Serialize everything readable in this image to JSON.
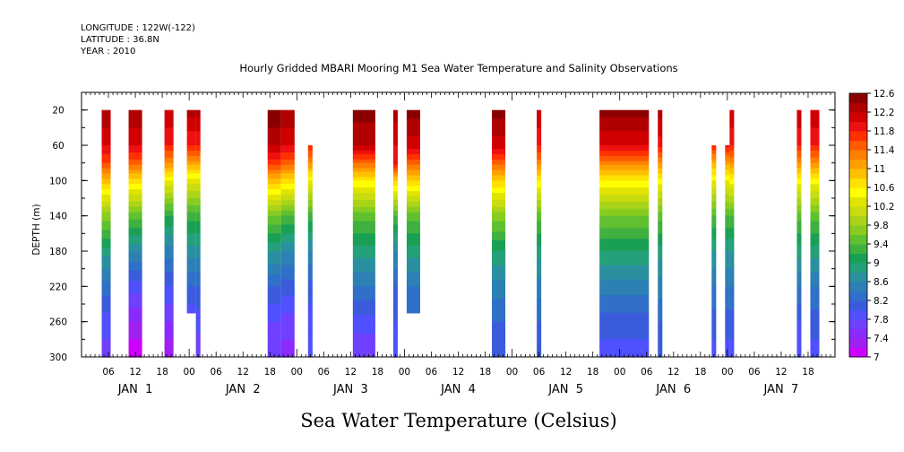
{
  "header": {
    "longitude": "LONGITUDE : 122W(-122)",
    "latitude": "LATITUDE : 36.8N",
    "year": "YEAR : 2010"
  },
  "chart_data": {
    "type": "heatmap",
    "title": "Hourly Gridded MBARI Mooring M1 Sea Water Temperature and Salinity Observations",
    "xlabel": "Sea Water Temperature (Celsius)",
    "ylabel": "DEPTH (m)",
    "ylim": [
      300,
      0
    ],
    "y_ticks": [
      20,
      60,
      100,
      140,
      180,
      220,
      260,
      300
    ],
    "x_range_hours": [
      0,
      168
    ],
    "hour_tick_labels": [
      "00",
      "06",
      "12",
      "18"
    ],
    "day_labels": [
      "JAN  1",
      "JAN  2",
      "JAN  3",
      "JAN  4",
      "JAN  5",
      "JAN  6",
      "JAN  7"
    ],
    "colorbar": {
      "levels": [
        7,
        7.2,
        7.4,
        7.6,
        7.8,
        8,
        8.2,
        8.4,
        8.6,
        8.8,
        9,
        9.2,
        9.4,
        9.6,
        9.8,
        10,
        10.2,
        10.4,
        10.6,
        10.8,
        11,
        11.2,
        11.4,
        11.6,
        11.8,
        12,
        12.2,
        12.4,
        12.6
      ],
      "tick_labels": [
        "7",
        "7.4",
        "7.8",
        "8.2",
        "8.6",
        "9",
        "9.4",
        "9.8",
        "10.2",
        "10.6",
        "11",
        "11.4",
        "11.8",
        "12.2",
        "12.6"
      ],
      "colors": [
        "#cc00ff",
        "#a020f0",
        "#8a2bfe",
        "#7040ff",
        "#5050ff",
        "#3a5cdc",
        "#3070c8",
        "#2c80b4",
        "#2a90a0",
        "#25a07a",
        "#1aa055",
        "#40b040",
        "#60c030",
        "#88cc20",
        "#aad418",
        "#c8dc10",
        "#e0e400",
        "#ffff00",
        "#ffe000",
        "#ffc000",
        "#ffa000",
        "#ff8000",
        "#ff5a00",
        "#ff3000",
        "#ee1010",
        "#d00000",
        "#b00000",
        "#8a0000"
      ]
    },
    "columns": [
      {
        "start_hour": 4.5,
        "end_hour": 6.5,
        "top_depth": 20,
        "bottom_depth": 300,
        "profile_depths": [
          20,
          60,
          80,
          100,
          140,
          180,
          220,
          260,
          300
        ],
        "profile_temps": [
          12.4,
          12.0,
          11.6,
          10.9,
          9.7,
          8.9,
          8.3,
          7.9,
          7.7
        ]
      },
      {
        "start_hour": 10.5,
        "end_hour": 13.5,
        "top_depth": 20,
        "bottom_depth": 300,
        "profile_depths": [
          20,
          60,
          80,
          100,
          140,
          180,
          220,
          260,
          300
        ],
        "profile_temps": [
          12.4,
          12.0,
          11.5,
          10.7,
          9.5,
          8.6,
          7.9,
          7.4,
          7.0
        ]
      },
      {
        "start_hour": 18.5,
        "end_hour": 20.5,
        "top_depth": 20,
        "bottom_depth": 300,
        "profile_depths": [
          20,
          60,
          80,
          100,
          140,
          180,
          220,
          260,
          300
        ],
        "profile_temps": [
          12.2,
          11.8,
          11.2,
          10.4,
          9.2,
          8.5,
          8.0,
          7.6,
          7.2
        ]
      },
      {
        "start_hour": 23.5,
        "end_hour": 25.5,
        "top_depth": 20,
        "bottom_depth": 250,
        "profile_depths": [
          20,
          60,
          80,
          100,
          140,
          180,
          220,
          250
        ],
        "profile_temps": [
          12.3,
          11.8,
          11.1,
          10.3,
          9.3,
          8.7,
          8.2,
          7.9
        ]
      },
      {
        "start_hour": 25.5,
        "end_hour": 26.5,
        "top_depth": 20,
        "bottom_depth": 300,
        "profile_depths": [
          20,
          60,
          80,
          100,
          140,
          180,
          220,
          260,
          300
        ],
        "profile_temps": [
          12.3,
          11.8,
          11.1,
          10.3,
          9.3,
          8.7,
          8.2,
          7.9,
          7.6
        ]
      },
      {
        "start_hour": 41.5,
        "end_hour": 44.5,
        "top_depth": 20,
        "bottom_depth": 300,
        "profile_depths": [
          20,
          60,
          80,
          100,
          140,
          180,
          220,
          260,
          300
        ],
        "profile_temps": [
          12.6,
          12.2,
          11.7,
          10.9,
          9.6,
          8.8,
          8.2,
          7.8,
          7.6
        ]
      },
      {
        "start_hour": 44.5,
        "end_hour": 47.5,
        "top_depth": 20,
        "bottom_depth": 300,
        "profile_depths": [
          20,
          60,
          80,
          100,
          140,
          180,
          220,
          260,
          300
        ],
        "profile_temps": [
          12.4,
          12.0,
          11.5,
          10.7,
          9.4,
          8.6,
          8.1,
          7.7,
          7.5
        ]
      },
      {
        "start_hour": 50.5,
        "end_hour": 51.5,
        "top_depth": 60,
        "bottom_depth": 300,
        "profile_depths": [
          60,
          80,
          100,
          140,
          180,
          220,
          260,
          300
        ],
        "profile_temps": [
          11.8,
          11.2,
          10.4,
          9.3,
          8.6,
          8.1,
          7.9,
          7.8
        ]
      },
      {
        "start_hour": 60.5,
        "end_hour": 65.5,
        "top_depth": 20,
        "bottom_depth": 300,
        "profile_depths": [
          20,
          60,
          80,
          100,
          140,
          180,
          220,
          260,
          300
        ],
        "profile_temps": [
          12.5,
          12.2,
          11.4,
          10.6,
          9.5,
          8.9,
          8.4,
          7.9,
          7.6
        ]
      },
      {
        "start_hour": 69.5,
        "end_hour": 70.5,
        "top_depth": 20,
        "bottom_depth": 300,
        "profile_depths": [
          20,
          60,
          80,
          100,
          140,
          180,
          220,
          260,
          300
        ],
        "profile_temps": [
          12.3,
          12.0,
          11.9,
          10.8,
          9.4,
          8.6,
          8.2,
          8.0,
          7.8
        ]
      },
      {
        "start_hour": 72.5,
        "end_hour": 75.5,
        "top_depth": 20,
        "bottom_depth": 250,
        "profile_depths": [
          20,
          60,
          80,
          100,
          140,
          180,
          220,
          250
        ],
        "profile_temps": [
          12.5,
          12.1,
          11.5,
          10.8,
          9.5,
          8.9,
          8.4,
          8.2
        ]
      },
      {
        "start_hour": 91.5,
        "end_hour": 94.5,
        "top_depth": 20,
        "bottom_depth": 300,
        "profile_depths": [
          20,
          60,
          80,
          100,
          140,
          180,
          220,
          260,
          300
        ],
        "profile_temps": [
          12.5,
          12.1,
          11.5,
          10.8,
          9.7,
          9.0,
          8.5,
          8.2,
          8.0
        ]
      },
      {
        "start_hour": 101.5,
        "end_hour": 102.5,
        "top_depth": 20,
        "bottom_depth": 300,
        "profile_depths": [
          20,
          60,
          80,
          100,
          140,
          180,
          220,
          260,
          300
        ],
        "profile_temps": [
          12.2,
          11.8,
          11.3,
          10.6,
          9.5,
          8.9,
          8.5,
          8.2,
          8.0
        ]
      },
      {
        "start_hour": 115.5,
        "end_hour": 126.5,
        "top_depth": 20,
        "bottom_depth": 300,
        "profile_depths": [
          20,
          60,
          80,
          100,
          140,
          180,
          220,
          260,
          300
        ],
        "profile_temps": [
          12.5,
          12.0,
          11.3,
          10.6,
          9.6,
          9.0,
          8.5,
          8.1,
          7.9
        ]
      },
      {
        "start_hour": 128.5,
        "end_hour": 129.5,
        "top_depth": 20,
        "bottom_depth": 300,
        "profile_depths": [
          20,
          60,
          80,
          100,
          140,
          180,
          220,
          260,
          300
        ],
        "profile_temps": [
          12.3,
          11.9,
          11.2,
          10.5,
          9.5,
          8.9,
          8.5,
          8.2,
          8.0
        ]
      },
      {
        "start_hour": 140.5,
        "end_hour": 141.5,
        "top_depth": 60,
        "bottom_depth": 300,
        "profile_depths": [
          60,
          80,
          100,
          140,
          180,
          220,
          260,
          300
        ],
        "profile_temps": [
          11.8,
          11.0,
          10.4,
          9.4,
          8.8,
          8.4,
          8.1,
          7.9
        ]
      },
      {
        "start_hour": 143.5,
        "end_hour": 144.5,
        "top_depth": 60,
        "bottom_depth": 300,
        "profile_depths": [
          60,
          80,
          100,
          140,
          180,
          220,
          260,
          300
        ],
        "profile_temps": [
          11.9,
          11.1,
          10.4,
          9.4,
          8.8,
          8.4,
          8.1,
          7.9
        ]
      },
      {
        "start_hour": 144.5,
        "end_hour": 145.5,
        "top_depth": 20,
        "bottom_depth": 300,
        "profile_depths": [
          20,
          60,
          80,
          100,
          140,
          180,
          220,
          260,
          300
        ],
        "profile_temps": [
          12.2,
          11.8,
          11.2,
          10.5,
          9.4,
          8.8,
          8.4,
          8.1,
          7.9
        ]
      },
      {
        "start_hour": 159.5,
        "end_hour": 160.5,
        "top_depth": 20,
        "bottom_depth": 300,
        "profile_depths": [
          20,
          60,
          80,
          100,
          140,
          180,
          220,
          260,
          300
        ],
        "profile_temps": [
          12.2,
          11.8,
          11.2,
          10.5,
          9.5,
          8.9,
          8.4,
          8.0,
          7.8
        ]
      },
      {
        "start_hour": 162.5,
        "end_hour": 164.5,
        "top_depth": 20,
        "bottom_depth": 300,
        "profile_depths": [
          20,
          60,
          80,
          100,
          140,
          180,
          220,
          260,
          300
        ],
        "profile_temps": [
          12.2,
          11.8,
          11.2,
          10.5,
          9.5,
          8.9,
          8.4,
          8.1,
          7.9
        ]
      }
    ]
  }
}
